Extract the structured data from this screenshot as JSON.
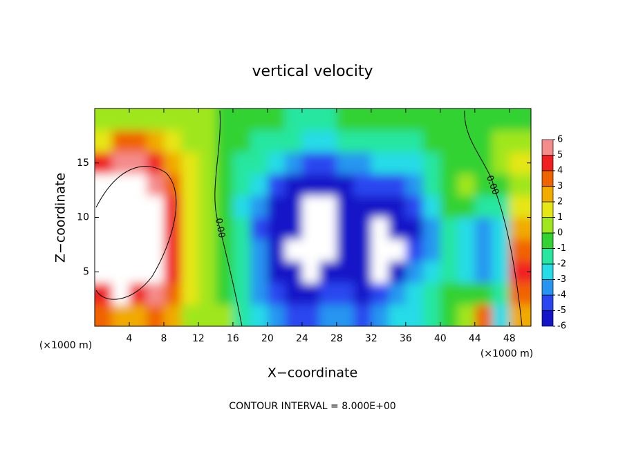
{
  "chart_data": {
    "type": "heatmap",
    "title": "vertical velocity",
    "x_label": "X−coordinate",
    "y_label": "Z−coordinate",
    "x_unit": "(×1000 m)",
    "footer": "CONTOUR INTERVAL = 8.000E+00",
    "contour_labels": [
      "0.00",
      "0.00"
    ],
    "xlim": [
      0,
      50.5
    ],
    "ylim": [
      0,
      20
    ],
    "xticks": [
      4,
      8,
      12,
      16,
      20,
      24,
      28,
      32,
      36,
      40,
      44,
      48
    ],
    "yticks": [
      5,
      10,
      15
    ],
    "x": [
      1,
      3,
      5,
      7,
      9,
      11,
      13,
      15,
      17,
      19,
      21,
      23,
      25,
      27,
      29,
      31,
      33,
      35,
      37,
      39,
      41,
      43,
      45,
      47,
      49
    ],
    "y": [
      1,
      3,
      5,
      7,
      9,
      11,
      13,
      15,
      17,
      19
    ],
    "values": [
      [
        4,
        3,
        3,
        4,
        3,
        1,
        0.5,
        0.5,
        -1,
        -2,
        -3,
        -4,
        -4,
        -3,
        -3,
        -4,
        -3,
        -2,
        -2,
        -1,
        0,
        1,
        4,
        -2,
        3
      ],
      [
        5,
        7,
        5,
        6,
        4,
        2,
        1,
        0,
        -1,
        -3,
        -4,
        -5,
        -5,
        -4,
        -4,
        -5,
        -4,
        -3,
        -2,
        -1,
        0,
        0,
        0,
        -1,
        4
      ],
      [
        8,
        8,
        8,
        7,
        5,
        2,
        0.5,
        0,
        -1,
        -3,
        -5,
        -6,
        -7,
        -5,
        -5,
        -6,
        -8,
        -6,
        -3,
        -2,
        -1,
        -2,
        -3,
        -2,
        5
      ],
      [
        8,
        8,
        8,
        8,
        5,
        2,
        0.5,
        0,
        -1,
        -3,
        -5,
        -7,
        -8,
        -8,
        -6,
        -6,
        -8,
        -7,
        -4,
        -3,
        -1,
        -2,
        -3,
        -2,
        4
      ],
      [
        8,
        8,
        8,
        8,
        5,
        2,
        0.5,
        0,
        -1,
        -4,
        -5,
        -6,
        -8,
        -8,
        -6,
        -6,
        -8,
        -6,
        -5,
        -3,
        -1,
        -2,
        -3,
        -2,
        3
      ],
      [
        8,
        8,
        8,
        7,
        5,
        2,
        0.5,
        0,
        -2,
        -3,
        -5,
        -6,
        -8,
        -8,
        -5,
        -5,
        -6,
        -6,
        -4,
        -2,
        0,
        0,
        -1,
        -1,
        2
      ],
      [
        7,
        8,
        8,
        6,
        4,
        2,
        0.5,
        0,
        -1,
        -2,
        -4,
        -5,
        -6,
        -5,
        -5,
        -4,
        -4,
        -4,
        -3,
        -1,
        0,
        1,
        0,
        0,
        1
      ],
      [
        5,
        6,
        6,
        5,
        3,
        1.5,
        0.5,
        0,
        -1,
        -1,
        -2,
        -3,
        -4,
        -4,
        -3,
        -3,
        -2,
        -2,
        -2,
        -1,
        0,
        0,
        0,
        1,
        2
      ],
      [
        2,
        4,
        4,
        3,
        2,
        1,
        0.5,
        0,
        0,
        -1,
        -1,
        -1,
        -2,
        -2,
        -1,
        -1,
        -1,
        -1,
        -1,
        0,
        0,
        0,
        0,
        1,
        1
      ],
      [
        1,
        1,
        1,
        1,
        1,
        0.5,
        0.5,
        0,
        0,
        0,
        0,
        -1,
        -1,
        -1,
        0,
        0,
        0,
        0,
        0,
        0,
        0,
        0,
        0,
        0,
        0
      ]
    ],
    "colorbar": {
      "ticks": [
        -6,
        -5,
        -4,
        -3,
        -2,
        -1,
        0,
        1,
        2,
        3,
        4,
        5,
        6
      ],
      "colors": [
        "#8010b0",
        "#1414c8",
        "#2a46f0",
        "#2896f0",
        "#28dce6",
        "#28e6a0",
        "#32d232",
        "#a0e61e",
        "#e6e614",
        "#f0aa00",
        "#f06400",
        "#f02020",
        "#f48c8c"
      ]
    },
    "out_of_range_color": "#ffffff"
  }
}
